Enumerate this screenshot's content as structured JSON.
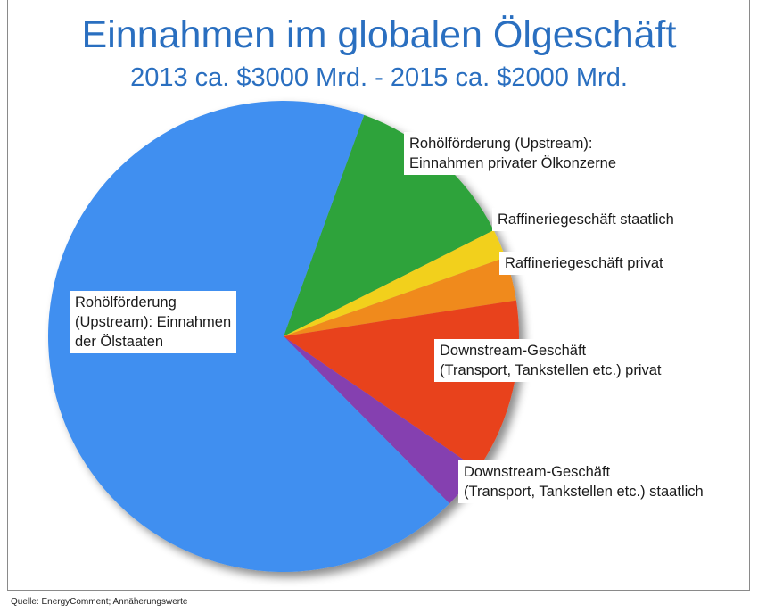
{
  "header": {
    "title": "Einnahmen im globalen Ölgeschäft",
    "subtitle": "2013 ca. $3000 Mrd. - 2015 ca. $2000 Mrd."
  },
  "chart_data": {
    "type": "pie",
    "title": "Einnahmen im globalen Ölgeschäft",
    "subtitle": "2013 ca. $3000 Mrd. - 2015 ca. $2000 Mrd.",
    "labels": [
      "Rohölförderung (Upstream): Einnahmen privater Ölkonzerne",
      "Raffineriegeschäft staatlich",
      "Raffineriegeschäft privat",
      "Downstream-Geschäft (Transport, Tankstellen etc.) privat",
      "Downstream-Geschäft (Transport, Tankstellen etc.) staatlich",
      "Rohölförderung (Upstream): Einnahmen der Ölstaaten"
    ],
    "label_lines": [
      [
        "Rohölförderung (Upstream):",
        "Einnahmen privater Ölkonzerne"
      ],
      [
        "Raffineriegeschäft staatlich"
      ],
      [
        "Raffineriegeschäft privat"
      ],
      [
        "Downstream-Geschäft",
        "(Transport, Tankstellen etc.) privat"
      ],
      [
        "Downstream-Geschäft",
        "(Transport, Tankstellen etc.) staatlich"
      ],
      [
        "Rohölförderung",
        "(Upstream): Einnahmen",
        "der Ölstaaten"
      ]
    ],
    "values": [
      12,
      2,
      3,
      12,
      3,
      68
    ],
    "colors": [
      "#2fa33a",
      "#f2d01f",
      "#f08a1c",
      "#e8431c",
      "#8540b0",
      "#3f8ff0"
    ],
    "legend": "none"
  },
  "source": "Quelle: EnergyComment; Annäherungswerte"
}
